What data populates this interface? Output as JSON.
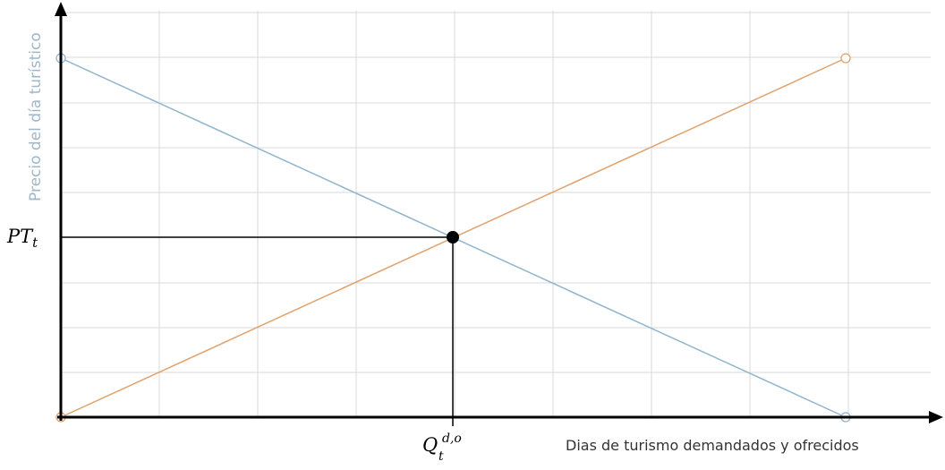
{
  "axes": {
    "y_label": "Precio del día turístico",
    "x_label": "Dias de turismo demandados y ofrecidos"
  },
  "annotations": {
    "price": {
      "base": "PT",
      "subscript": "t"
    },
    "quantity": {
      "base": "Q",
      "subscript": "t",
      "superscript": "d,o"
    }
  }
}
